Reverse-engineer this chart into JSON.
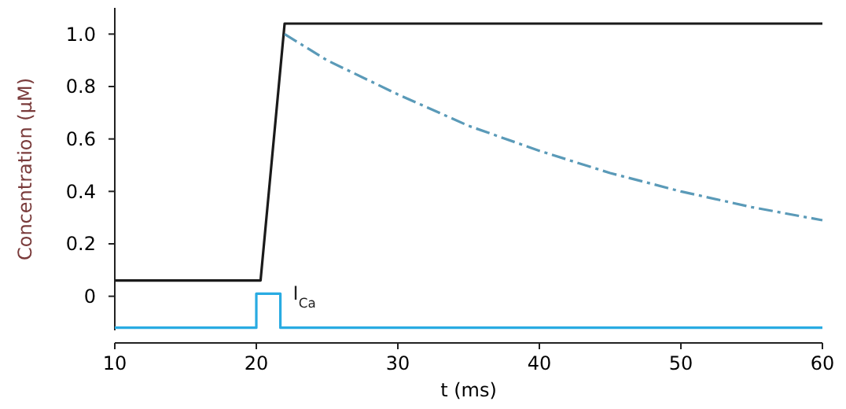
{
  "chart_data": {
    "type": "line",
    "xlabel": "t (ms)",
    "ylabel": "Concentration (μM)",
    "xlim": [
      10,
      60
    ],
    "xticks": [
      10,
      20,
      30,
      40,
      50,
      60
    ],
    "ylim": [
      -0.13,
      1.1
    ],
    "yticks": [
      0,
      0.2,
      0.4,
      0.6,
      0.8,
      {
        "value": 1,
        "label": "1.0"
      }
    ],
    "grid": false,
    "series": [
      {
        "color": "#1a1a1a",
        "line_style": "solid",
        "x": [
          10,
          20,
          20.3,
          22,
          60
        ],
        "values": [
          0.06,
          0.06,
          0.06,
          1.04,
          1.04
        ]
      },
      {
        "color": "#5a9ab8",
        "line_style": "dashed",
        "x": [
          22,
          25,
          30,
          35,
          40,
          45,
          50,
          55,
          60
        ],
        "values": [
          1.0,
          0.9,
          0.77,
          0.65,
          0.555,
          0.47,
          0.4,
          0.34,
          0.29
        ]
      },
      {
        "name": "I$_{Ca}$",
        "type": "step",
        "color": "#29abe2",
        "line_style": "solid",
        "x": [
          10,
          20,
          21.7,
          60
        ],
        "values": [
          -0.12,
          0.01,
          -0.12,
          -0.12
        ]
      }
    ]
  }
}
